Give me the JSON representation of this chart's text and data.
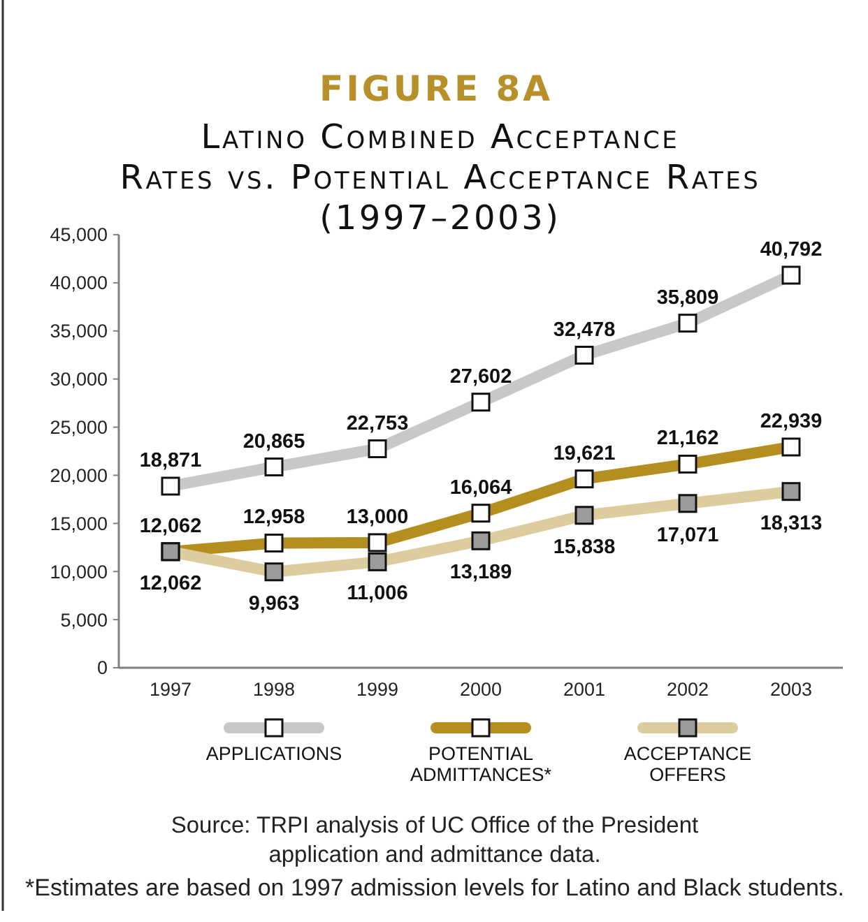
{
  "chart_data": {
    "type": "line",
    "title": "FIGURE 8A",
    "subtitle": "Latino Combined Acceptance\nRates vs. Potential Acceptance Rates\n(1997–2003)",
    "categories": [
      "1997",
      "1998",
      "1999",
      "2000",
      "2001",
      "2002",
      "2003"
    ],
    "series": [
      {
        "name": "APPLICATIONS",
        "color": "#c8c8c8",
        "values": [
          18871,
          20865,
          22753,
          27602,
          32478,
          35809,
          40792
        ],
        "value_labels": [
          "18,871",
          "20,865",
          "22,753",
          "27,602",
          "32,478",
          "35,809",
          "40,792"
        ]
      },
      {
        "name": "POTENTIAL ADMITTANCES*",
        "color": "#b48e1f",
        "values": [
          12062,
          12958,
          13000,
          16064,
          19621,
          21162,
          22939
        ],
        "value_labels": [
          "12,062",
          "12,958",
          "13,000",
          "16,064",
          "19,621",
          "21,162",
          "22,939"
        ]
      },
      {
        "name": "ACCEPTANCE OFFERS",
        "color": "#dccc9e",
        "values": [
          12062,
          9963,
          11006,
          13189,
          15838,
          17071,
          18313
        ],
        "value_labels": [
          "12,062",
          "9,963",
          "11,006",
          "13,189",
          "15,838",
          "17,071",
          "18,313"
        ]
      }
    ],
    "ylim": [
      0,
      45000
    ],
    "yticks": [
      0,
      {
        "value": 5000,
        "label": "5,000"
      },
      {
        "value": 10000,
        "label": "10,000"
      },
      {
        "value": 15000,
        "label": "15,000"
      },
      {
        "value": 20000,
        "label": "20,000"
      },
      {
        "value": 25000,
        "label": "25,000"
      },
      {
        "value": 30000,
        "label": "30,000"
      },
      {
        "value": 35000,
        "label": "35,000"
      },
      {
        "value": 40000,
        "label": "40,000"
      },
      {
        "value": 45000,
        "label": "45,000"
      }
    ],
    "marker": "square",
    "line_style": "solid",
    "legend": "bottom",
    "annotations": [
      "Source: TRPI analysis of UC Office of the President application and admittance data.",
      "*Estimates are based on 1997 admission levels for Latino and Black students."
    ]
  }
}
